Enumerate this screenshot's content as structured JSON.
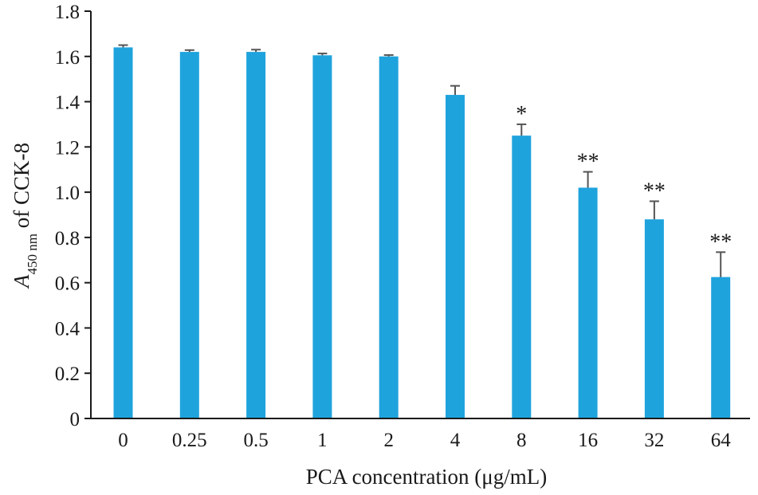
{
  "chart_data": {
    "type": "bar",
    "categories": [
      "0",
      "0.25",
      "0.5",
      "1",
      "2",
      "4",
      "8",
      "16",
      "32",
      "64"
    ],
    "values": [
      1.64,
      1.62,
      1.62,
      1.605,
      1.6,
      1.43,
      1.25,
      1.02,
      0.88,
      0.625
    ],
    "errors": [
      0.01,
      0.008,
      0.01,
      0.008,
      0.006,
      0.04,
      0.05,
      0.07,
      0.08,
      0.11
    ],
    "significance": [
      "",
      "",
      "",
      "",
      "",
      "",
      "*",
      "**",
      "**",
      "**"
    ],
    "title": "",
    "xlabel": "PCA concentration (μg/mL)",
    "ylabel": {
      "symbol": "A",
      "subscript": "450 nm",
      "suffix": " of CCK-8"
    },
    "ylim": [
      0,
      1.8
    ],
    "yticks": [
      "0",
      "0.2",
      "0.4",
      "0.6",
      "0.8",
      "1.0",
      "1.2",
      "1.4",
      "1.6",
      "1.8"
    ],
    "grid": false,
    "legend": "none",
    "colors": {
      "bar": "#1fa3dd",
      "error_bar": "#555555",
      "axis": "#1a1a1a"
    }
  }
}
